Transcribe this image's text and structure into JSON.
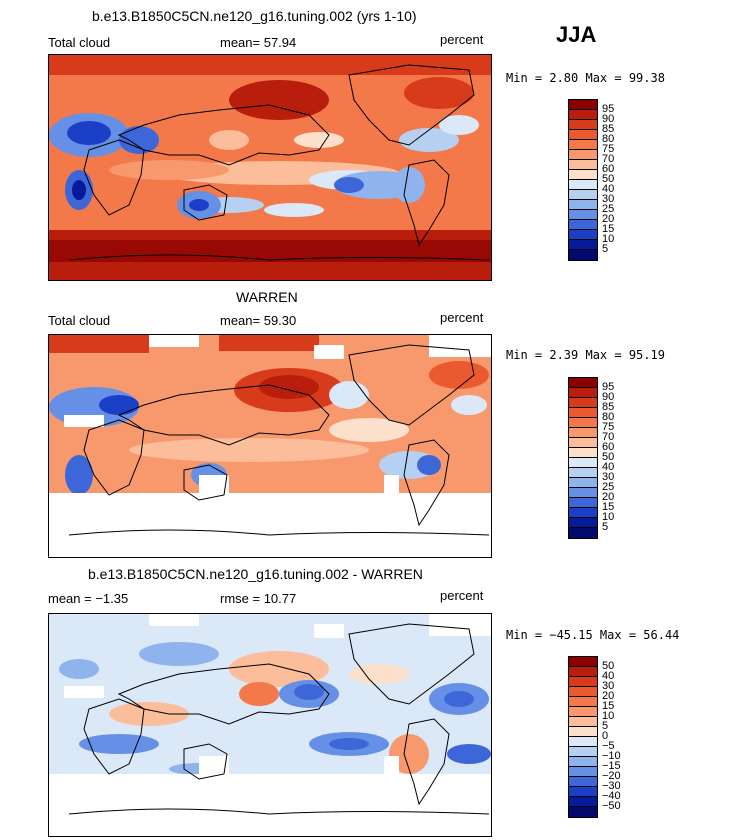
{
  "season": "JJA",
  "panels": [
    {
      "title": "b.e13.B1850C5CN.ne120_g16.tuning.002 (yrs 1-10)",
      "left_label": "Total cloud",
      "center_label": "mean=  57.94",
      "right_label": "percent",
      "minmax": "Min =    2.80  Max =   99.38",
      "levels": [
        "95",
        "90",
        "85",
        "80",
        "75",
        "70",
        "60",
        "50",
        "40",
        "30",
        "25",
        "20",
        "15",
        "10",
        "5"
      ],
      "colors": [
        "#8b0000",
        "#b81e0b",
        "#d83a1c",
        "#ea5a2e",
        "#f3784a",
        "#f7996c",
        "#fbbd9a",
        "#fde0cc",
        "#dbe8f7",
        "#b6d0f1",
        "#8fb3ec",
        "#6690e5",
        "#3d67d9",
        "#1b3fc6",
        "#071a99",
        "#020a6e"
      ]
    },
    {
      "title": "WARREN",
      "left_label": "Total cloud",
      "center_label": "mean=  59.30",
      "right_label": "percent",
      "minmax": "Min =    2.39  Max =   95.19",
      "levels": [
        "95",
        "90",
        "85",
        "80",
        "75",
        "70",
        "60",
        "50",
        "40",
        "30",
        "25",
        "20",
        "15",
        "10",
        "5"
      ],
      "colors": [
        "#8b0000",
        "#b81e0b",
        "#d83a1c",
        "#ea5a2e",
        "#f3784a",
        "#f7996c",
        "#fbbd9a",
        "#fde0cc",
        "#dbe8f7",
        "#b6d0f1",
        "#8fb3ec",
        "#6690e5",
        "#3d67d9",
        "#1b3fc6",
        "#071a99",
        "#020a6e"
      ]
    },
    {
      "title": "b.e13.B1850C5CN.ne120_g16.tuning.002 - WARREN",
      "left_label": "mean =  −1.35",
      "center_label": "rmse =   10.77",
      "right_label": "percent",
      "minmax": "Min = −45.15  Max =   56.44",
      "levels": [
        "50",
        "40",
        "30",
        "20",
        "15",
        "10",
        "5",
        "0",
        "−5",
        "−10",
        "−15",
        "−20",
        "−30",
        "−40",
        "−50"
      ],
      "colors": [
        "#8b0000",
        "#b81e0b",
        "#d83a1c",
        "#ea5a2e",
        "#f3784a",
        "#f7996c",
        "#fbbd9a",
        "#fde0cc",
        "#dbe8f7",
        "#b6d0f1",
        "#8fb3ec",
        "#6690e5",
        "#3d67d9",
        "#1b3fc6",
        "#071a99",
        "#020a6e"
      ]
    }
  ]
}
